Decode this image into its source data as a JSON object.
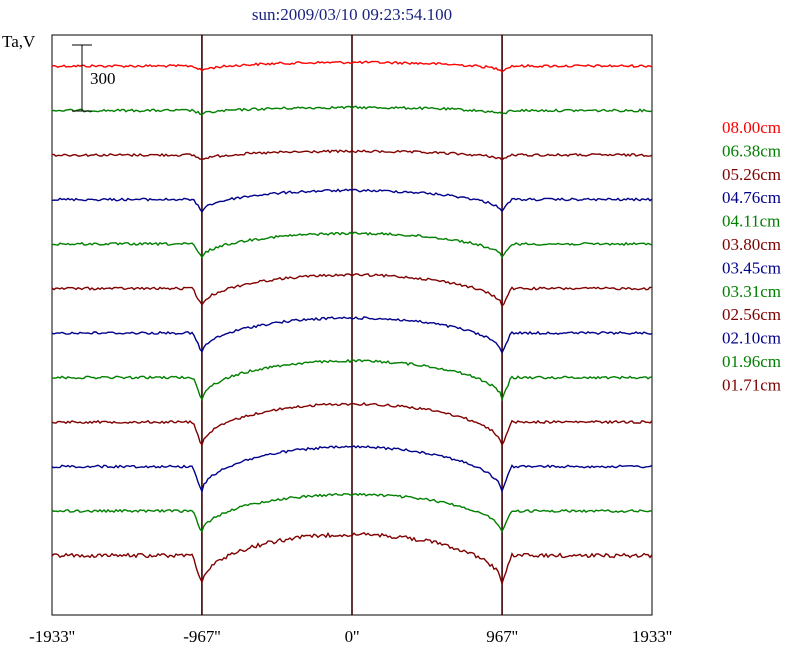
{
  "chart_data": {
    "type": "line",
    "title": "sun:2009/03/10 09:23:54.100",
    "ylabel": "Ta,V",
    "scale_bar_label": "300",
    "x_ticks": [
      "-1933''",
      "-967''",
      "0''",
      "967''",
      "1933''"
    ],
    "xlim": [
      -1933,
      1933
    ],
    "vertical_lines_at": [
      -967,
      0,
      967
    ],
    "legend_placement": "right",
    "grid": false,
    "series": [
      {
        "name": "08.00cm",
        "color": "#ff0000",
        "depth": 0.12
      },
      {
        "name": "06.38cm",
        "color": "#008000",
        "depth": 0.1
      },
      {
        "name": "05.26cm",
        "color": "#800000",
        "depth": 0.12
      },
      {
        "name": "04.76cm",
        "color": "#00008b",
        "depth": 0.3
      },
      {
        "name": "04.11cm",
        "color": "#008000",
        "depth": 0.35
      },
      {
        "name": "03.80cm",
        "color": "#800000",
        "depth": 0.45
      },
      {
        "name": "03.45cm",
        "color": "#00008b",
        "depth": 0.5
      },
      {
        "name": "03.31cm",
        "color": "#008000",
        "depth": 0.55
      },
      {
        "name": "02.56cm",
        "color": "#800000",
        "depth": 0.6
      },
      {
        "name": "02.10cm",
        "color": "#00008b",
        "depth": 0.65
      },
      {
        "name": "01.96cm",
        "color": "#008000",
        "depth": 0.55
      },
      {
        "name": "01.71cm",
        "color": "#800000",
        "depth": 0.7
      }
    ]
  }
}
